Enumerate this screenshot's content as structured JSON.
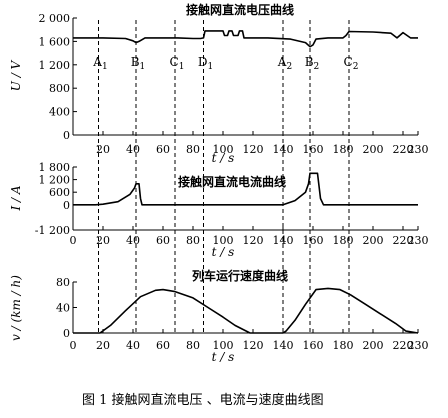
{
  "caption": "图 1    接触网直流电压 、电流与速度曲线图",
  "markers": [
    {
      "label": "A",
      "sub": "1",
      "x": 17
    },
    {
      "label": "B",
      "sub": "1",
      "x": 42
    },
    {
      "label": "C",
      "sub": "1",
      "x": 68
    },
    {
      "label": "D",
      "sub": "1",
      "x": 87
    },
    {
      "label": "A",
      "sub": "2",
      "x": 140
    },
    {
      "label": "B",
      "sub": "2",
      "x": 158
    },
    {
      "label": "C",
      "sub": "2",
      "x": 184
    }
  ],
  "chart_data": [
    {
      "type": "line",
      "title": "接触网直流电压曲线",
      "ylabel": "U / V",
      "xlabel": "t / s",
      "xlim": [
        0,
        230
      ],
      "ylim": [
        0,
        2000
      ],
      "xticks": [
        20,
        40,
        60,
        80,
        100,
        120,
        140,
        160,
        180,
        200,
        220,
        230
      ],
      "yticks": [
        {
          "v": 0,
          "t": "0"
        },
        {
          "v": 400,
          "t": "400"
        },
        {
          "v": 800,
          "t": "800"
        },
        {
          "v": 1200,
          "t": "1 200"
        },
        {
          "v": 1600,
          "t": "1 600"
        },
        {
          "v": 2000,
          "t": "2 000"
        }
      ],
      "series": [
        {
          "x": [
            0,
            20,
            35,
            40,
            42,
            44,
            48,
            60,
            70,
            80,
            85,
            87,
            88,
            100,
            101,
            103,
            104,
            106,
            107,
            110,
            111,
            113,
            114,
            130,
            145,
            155,
            158,
            160,
            162,
            170,
            180,
            182,
            184,
            200,
            212,
            216,
            220,
            225,
            230
          ],
          "y": [
            1660,
            1660,
            1650,
            1610,
            1580,
            1600,
            1660,
            1660,
            1660,
            1650,
            1650,
            1660,
            1780,
            1780,
            1700,
            1700,
            1780,
            1780,
            1700,
            1700,
            1780,
            1780,
            1660,
            1660,
            1640,
            1580,
            1510,
            1540,
            1640,
            1660,
            1660,
            1700,
            1770,
            1760,
            1740,
            1660,
            1750,
            1660,
            1660
          ]
        }
      ]
    },
    {
      "type": "line",
      "title": "接触网直流电流曲线",
      "ylabel": "I / A",
      "xlabel": "t / s",
      "xlim": [
        0,
        230
      ],
      "ylim": [
        -1200,
        1800
      ],
      "xticks": [
        0,
        20,
        40,
        60,
        80,
        100,
        120,
        140,
        160,
        180,
        200,
        220,
        230
      ],
      "yticks": [
        {
          "v": -1200,
          "t": "-1 200"
        },
        {
          "v": 0,
          "t": "0"
        },
        {
          "v": 600,
          "t": "600"
        },
        {
          "v": 1200,
          "t": "1 200"
        },
        {
          "v": 1800,
          "t": "1 800"
        }
      ],
      "series": [
        {
          "x": [
            0,
            15,
            20,
            30,
            38,
            41,
            42,
            44,
            45,
            46,
            60,
            80,
            100,
            120,
            140,
            148,
            155,
            157,
            158,
            163,
            165,
            167,
            180,
            200,
            230
          ],
          "y": [
            0,
            0,
            30,
            150,
            500,
            800,
            1000,
            1000,
            300,
            0,
            0,
            0,
            0,
            0,
            0,
            200,
            600,
            1000,
            1500,
            1500,
            300,
            0,
            0,
            0,
            0
          ]
        }
      ]
    },
    {
      "type": "line",
      "title": "列车运行速度曲线",
      "ylabel": "v / (km / h)",
      "xlabel": "t / s",
      "xlim": [
        0,
        230
      ],
      "ylim": [
        0,
        80
      ],
      "xticks": [
        0,
        20,
        40,
        60,
        80,
        100,
        120,
        140,
        160,
        180,
        200,
        220,
        230
      ],
      "yticks": [
        {
          "v": 0,
          "t": "0"
        },
        {
          "v": 40,
          "t": "40"
        },
        {
          "v": 80,
          "t": "80"
        }
      ],
      "series": [
        {
          "x": [
            0,
            18,
            25,
            35,
            45,
            55,
            60,
            68,
            80,
            90,
            100,
            108,
            118,
            140,
            142,
            148,
            155,
            162,
            170,
            178,
            185,
            195,
            205,
            215,
            222,
            230
          ],
          "y": [
            0,
            0,
            12,
            35,
            57,
            67,
            68,
            65,
            55,
            40,
            25,
            12,
            0,
            0,
            3,
            20,
            45,
            68,
            70,
            68,
            60,
            45,
            30,
            15,
            3,
            0
          ]
        }
      ]
    }
  ]
}
